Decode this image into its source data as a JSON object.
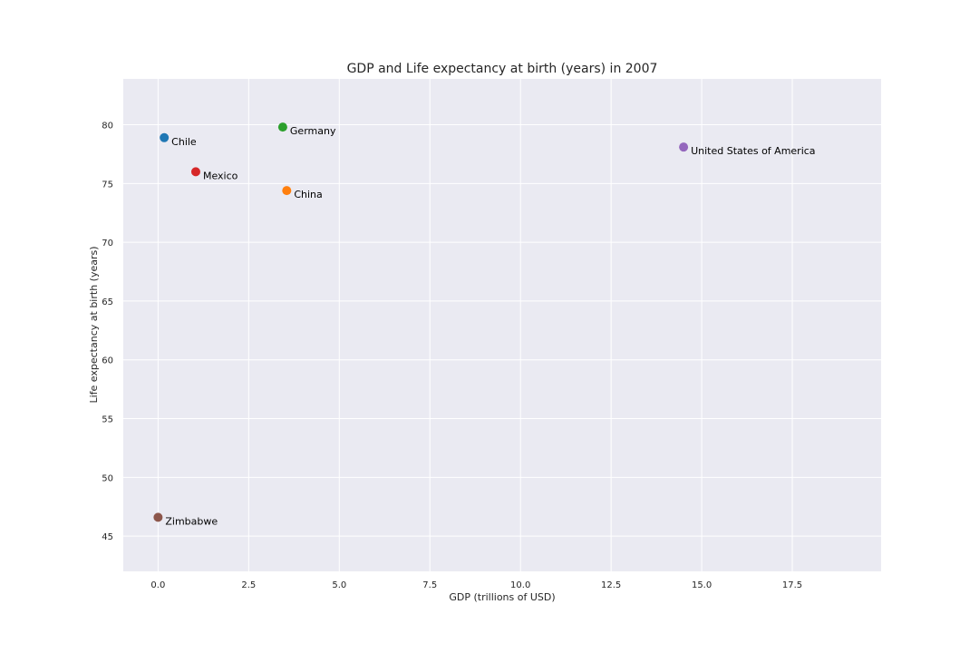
{
  "chart_data": {
    "type": "scatter",
    "title": "GDP and Life expectancy at birth (years) in 2007",
    "xlabel": "GDP (trillions of USD)",
    "ylabel": "Life expectancy at birth (years)",
    "xlim": [
      -0.96,
      19.95
    ],
    "ylim": [
      42.0,
      83.9
    ],
    "xticks": [
      0.0,
      2.5,
      5.0,
      7.5,
      10.0,
      12.5,
      15.0,
      17.5
    ],
    "xtick_labels": [
      "0.0",
      "2.5",
      "5.0",
      "7.5",
      "10.0",
      "12.5",
      "15.0",
      "17.5"
    ],
    "yticks": [
      45,
      50,
      55,
      60,
      65,
      70,
      75,
      80
    ],
    "ytick_labels": [
      "45",
      "50",
      "55",
      "60",
      "65",
      "70",
      "75",
      "80"
    ],
    "grid": true,
    "background": "#eaeaf2",
    "points": [
      {
        "label": "Chile",
        "x": 0.17,
        "y": 78.9,
        "color": "#1f77b4"
      },
      {
        "label": "China",
        "x": 3.55,
        "y": 74.4,
        "color": "#ff7f0e"
      },
      {
        "label": "Germany",
        "x": 3.44,
        "y": 79.8,
        "color": "#2ca02c"
      },
      {
        "label": "Mexico",
        "x": 1.04,
        "y": 76.0,
        "color": "#d62728"
      },
      {
        "label": "United States of America",
        "x": 14.5,
        "y": 78.1,
        "color": "#9467bd"
      },
      {
        "label": "Zimbabwe",
        "x": 0.0,
        "y": 46.6,
        "color": "#8c564b"
      }
    ]
  }
}
